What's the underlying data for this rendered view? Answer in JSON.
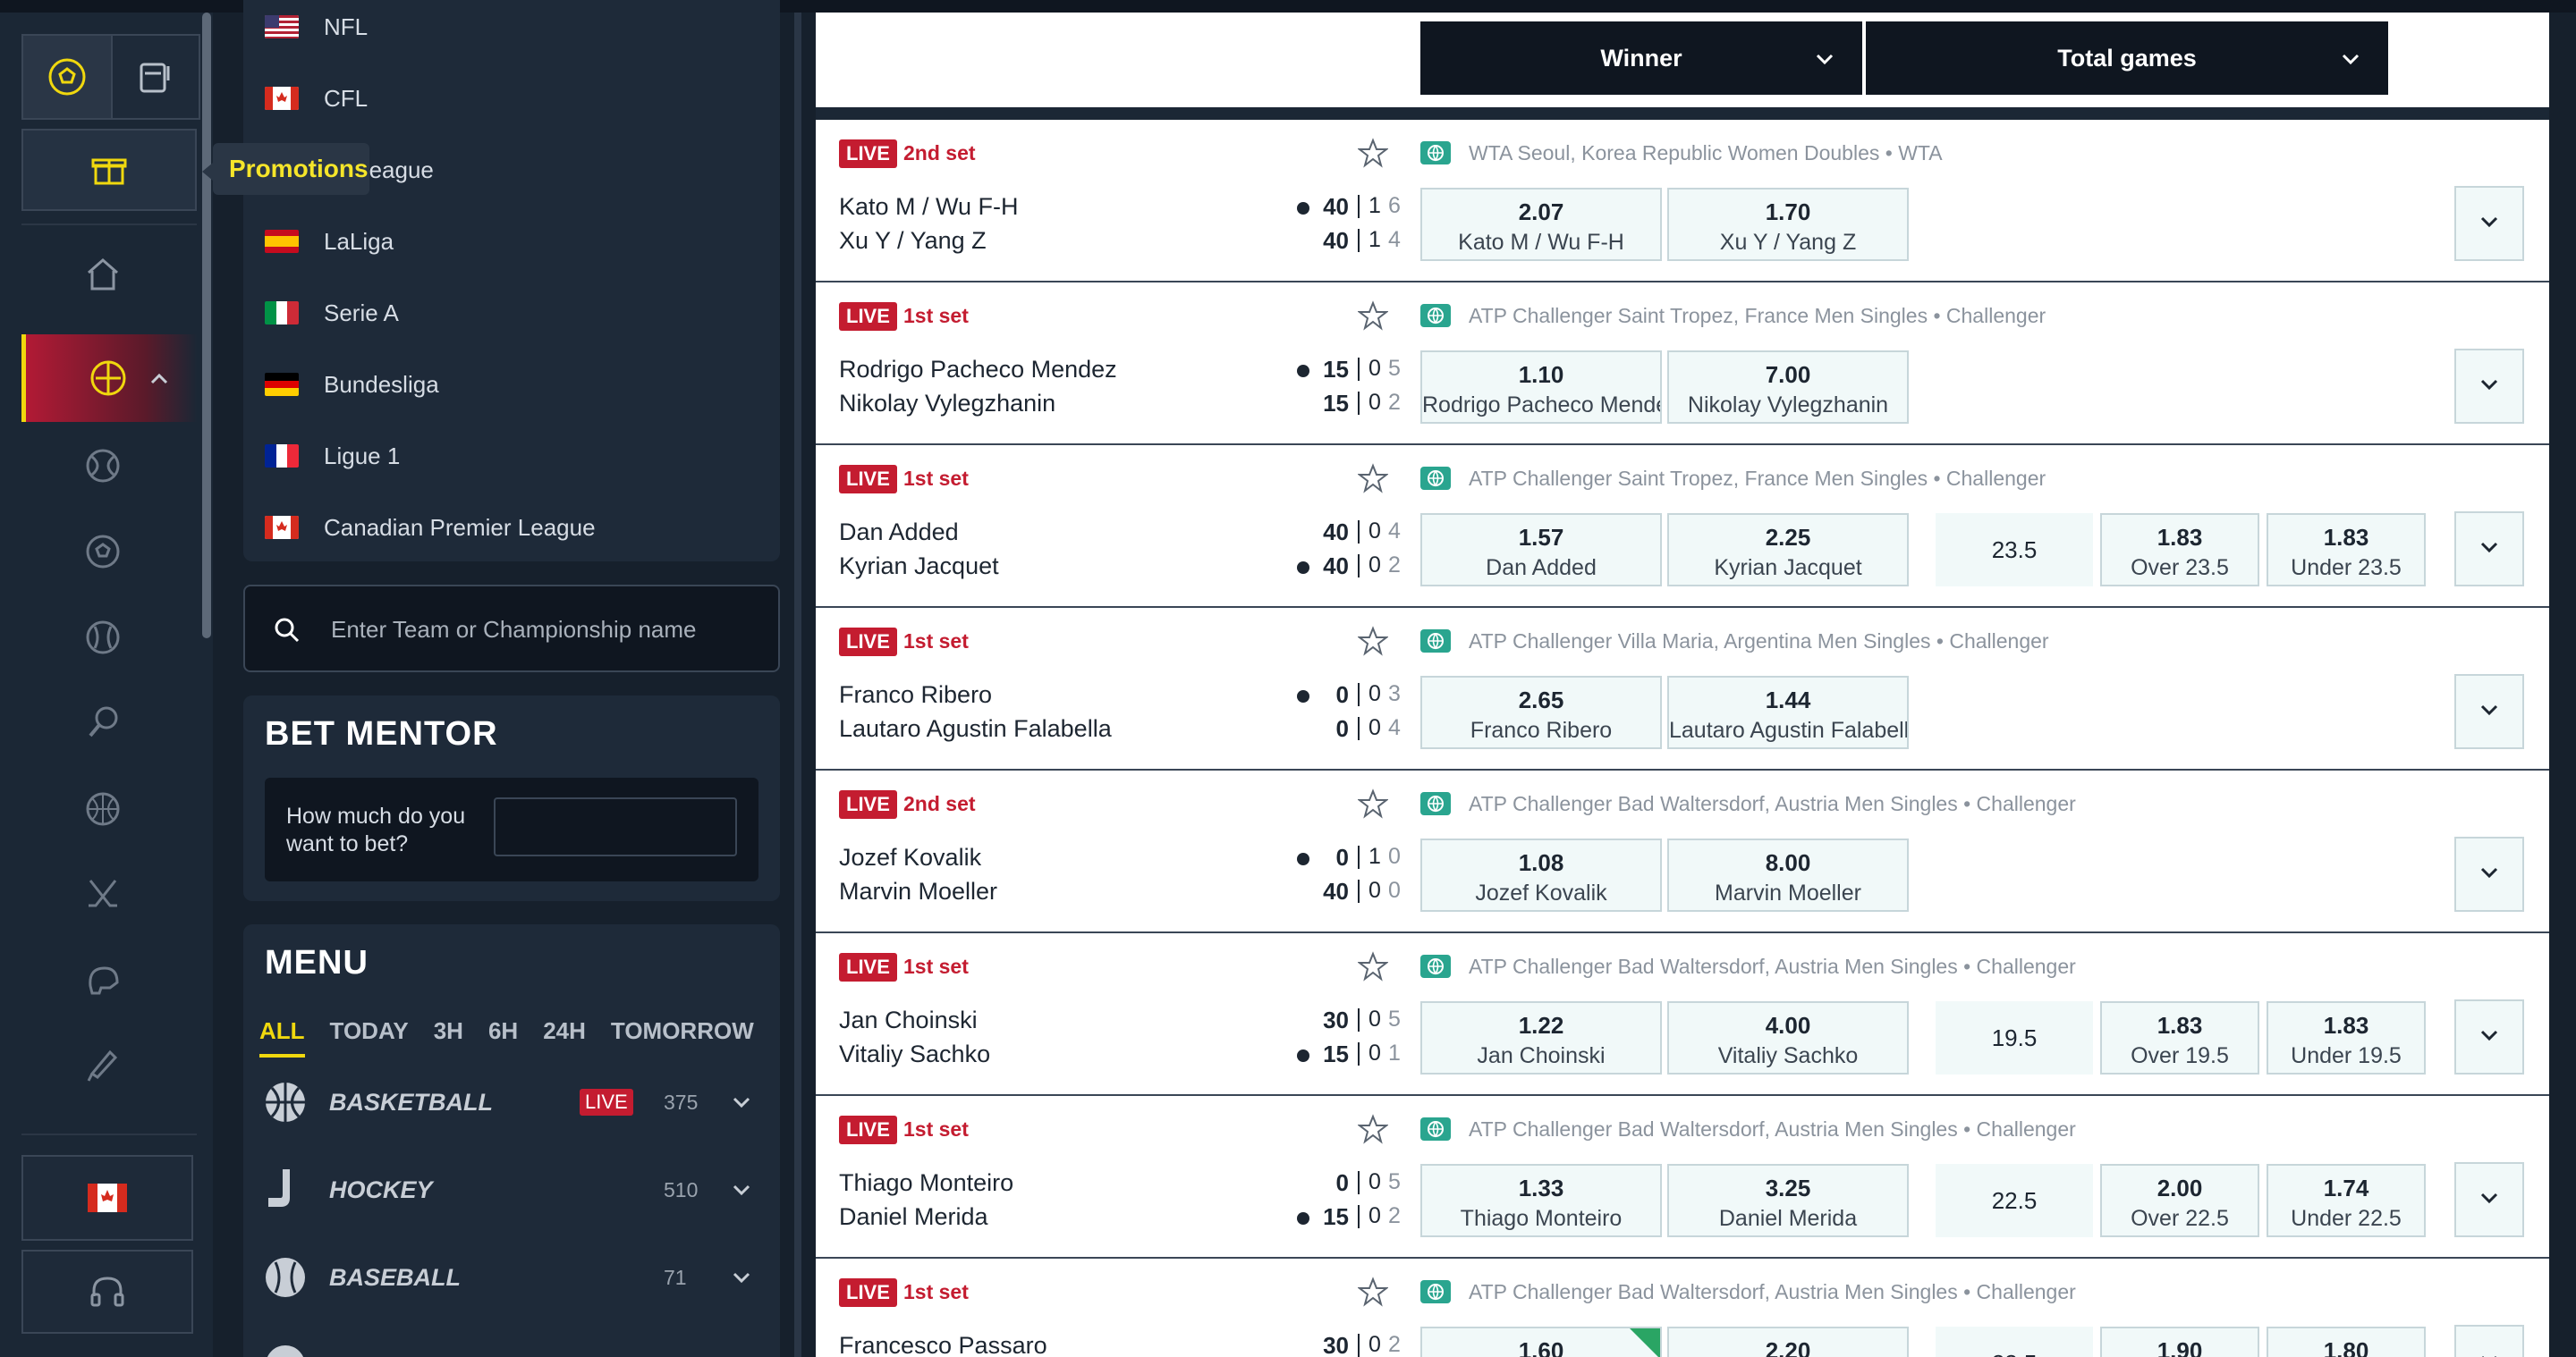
{
  "rail": {
    "flag_country": "canada"
  },
  "tooltip": {
    "text": "Promotions"
  },
  "leagues": [
    {
      "name": "NFL",
      "flag": "usa"
    },
    {
      "name": "CFL",
      "flag": "canada"
    },
    {
      "name": "ier League",
      "flag": "england"
    },
    {
      "name": "LaLiga",
      "flag": "spain"
    },
    {
      "name": "Serie A",
      "flag": "italy"
    },
    {
      "name": "Bundesliga",
      "flag": "germany"
    },
    {
      "name": "Ligue 1",
      "flag": "france"
    },
    {
      "name": "Canadian Premier League",
      "flag": "canada"
    }
  ],
  "search": {
    "placeholder": "Enter Team or Championship name"
  },
  "bet_mentor": {
    "title": "BET MENTOR",
    "question": "How much do you want to bet?"
  },
  "menu": {
    "title": "MENU",
    "tabs": [
      "ALL",
      "TODAY",
      "3H",
      "6H",
      "24H",
      "TOMORROW"
    ],
    "sports": [
      {
        "name": "BASKETBALL",
        "live": "LIVE",
        "count": "375"
      },
      {
        "name": "HOCKEY",
        "live": "",
        "count": "510"
      },
      {
        "name": "BASEBALL",
        "live": "",
        "count": "71"
      }
    ]
  },
  "markets": {
    "winner": "Winner",
    "total_games": "Total games"
  },
  "events": [
    {
      "live": "LIVE",
      "set": "2nd set",
      "competition": "WTA Seoul, Korea Republic Women Doubles • WTA",
      "team1": "Kato M / Wu F-H",
      "team2": "Xu Y / Yang Z",
      "serve": 1,
      "pts1": "40",
      "s1a": "1",
      "s1b": "6",
      "pts2": "40",
      "s2a": "1",
      "s2b": "4",
      "odd1": "2.07",
      "odd2": "1.70",
      "total": null
    },
    {
      "live": "LIVE",
      "set": "1st set",
      "competition": "ATP Challenger Saint Tropez, France Men Singles • Challenger",
      "team1": "Rodrigo Pacheco Mendez",
      "team2": "Nikolay Vylegzhanin",
      "serve": 1,
      "pts1": "15",
      "s1a": "0",
      "s1b": "5",
      "pts2": "15",
      "s2a": "0",
      "s2b": "2",
      "odd1": "1.10",
      "odd2": "7.00",
      "total": null
    },
    {
      "live": "LIVE",
      "set": "1st set",
      "competition": "ATP Challenger Saint Tropez, France Men Singles • Challenger",
      "team1": "Dan Added",
      "team2": "Kyrian Jacquet",
      "serve": 2,
      "pts1": "40",
      "s1a": "0",
      "s1b": "4",
      "pts2": "40",
      "s2a": "0",
      "s2b": "2",
      "odd1": "1.57",
      "odd2": "2.25",
      "total": {
        "line": "23.5",
        "over": "1.83",
        "over_label": "Over 23.5",
        "under": "1.83",
        "under_label": "Under 23.5"
      }
    },
    {
      "live": "LIVE",
      "set": "1st set",
      "competition": "ATP Challenger Villa Maria, Argentina Men Singles • Challenger",
      "team1": "Franco Ribero",
      "team2": "Lautaro Agustin Falabella",
      "serve": 1,
      "pts1": "0",
      "s1a": "0",
      "s1b": "3",
      "pts2": "0",
      "s2a": "0",
      "s2b": "4",
      "odd1": "2.65",
      "odd2": "1.44",
      "total": null
    },
    {
      "live": "LIVE",
      "set": "2nd set",
      "competition": "ATP Challenger Bad Waltersdorf, Austria Men Singles • Challenger",
      "team1": "Jozef Kovalik",
      "team2": "Marvin Moeller",
      "serve": 1,
      "pts1": "0",
      "s1a": "1",
      "s1b": "0",
      "pts2": "40",
      "s2a": "0",
      "s2b": "0",
      "odd1": "1.08",
      "odd2": "8.00",
      "total": null
    },
    {
      "live": "LIVE",
      "set": "1st set",
      "competition": "ATP Challenger Bad Waltersdorf, Austria Men Singles • Challenger",
      "team1": "Jan Choinski",
      "team2": "Vitaliy Sachko",
      "serve": 2,
      "pts1": "30",
      "s1a": "0",
      "s1b": "5",
      "pts2": "15",
      "s2a": "0",
      "s2b": "1",
      "odd1": "1.22",
      "odd2": "4.00",
      "total": {
        "line": "19.5",
        "over": "1.83",
        "over_label": "Over 19.5",
        "under": "1.83",
        "under_label": "Under 19.5"
      }
    },
    {
      "live": "LIVE",
      "set": "1st set",
      "competition": "ATP Challenger Bad Waltersdorf, Austria Men Singles • Challenger",
      "team1": "Thiago Monteiro",
      "team2": "Daniel Merida",
      "serve": 2,
      "pts1": "0",
      "s1a": "0",
      "s1b": "5",
      "pts2": "15",
      "s2a": "0",
      "s2b": "2",
      "odd1": "1.33",
      "odd2": "3.25",
      "total": {
        "line": "22.5",
        "over": "2.00",
        "over_label": "Over 22.5",
        "under": "1.74",
        "under_label": "Under 22.5"
      }
    },
    {
      "live": "LIVE",
      "set": "1st set",
      "competition": "ATP Challenger Bad Waltersdorf, Austria Men Singles • Challenger",
      "team1": "Francesco Passaro",
      "team2": "",
      "serve": 0,
      "pts1": "30",
      "s1a": "0",
      "s1b": "2",
      "pts2": "",
      "s2a": "",
      "s2b": "",
      "odd1": "1.60",
      "odd2": "2.20",
      "odd1_trend": "up",
      "total": {
        "line": "22.5",
        "over": "1.90",
        "over_label": "",
        "under": "1.80",
        "under_label": ""
      }
    }
  ]
}
